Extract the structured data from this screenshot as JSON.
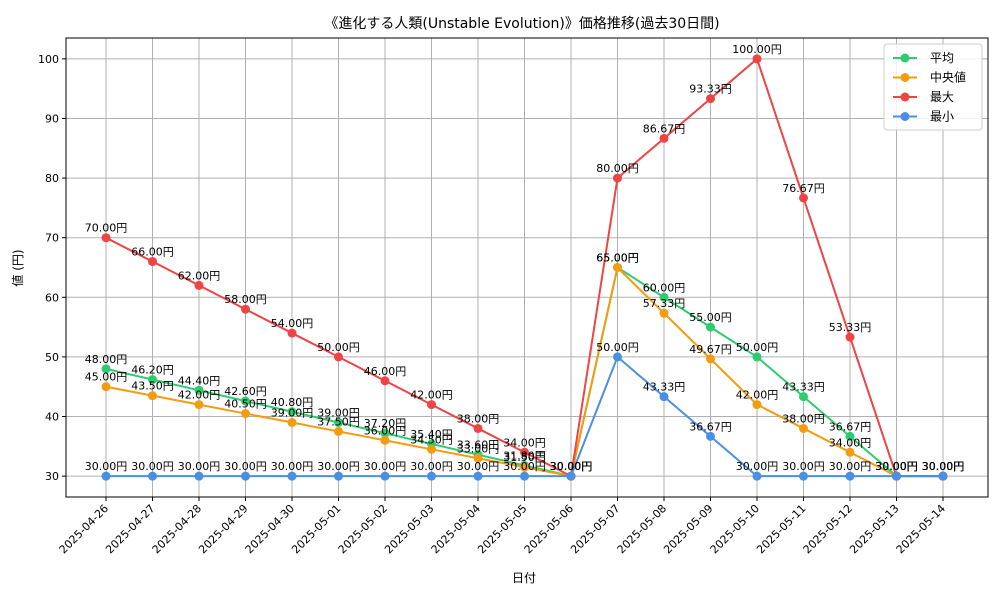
{
  "chart_data": {
    "type": "line",
    "title": "《進化する人類(Unstable Evolution)》価格推移(過去30日間)",
    "xlabel": "日付",
    "ylabel": "値 (円)",
    "ylim": [
      26.5,
      103.5
    ],
    "yticks": [
      30,
      40,
      50,
      60,
      70,
      80,
      90,
      100
    ],
    "grid": true,
    "legend_position": "top-right",
    "value_suffix": "円",
    "categories": [
      "2025-04-26",
      "2025-04-27",
      "2025-04-28",
      "2025-04-29",
      "2025-04-30",
      "2025-05-01",
      "2025-05-02",
      "2025-05-03",
      "2025-05-04",
      "2025-05-05",
      "2025-05-06",
      "2025-05-07",
      "2025-05-08",
      "2025-05-09",
      "2025-05-10",
      "2025-05-11",
      "2025-05-12",
      "2025-05-13",
      "2025-05-14"
    ],
    "series": [
      {
        "name": "平均",
        "color": "#2ecc71",
        "values": [
          48.0,
          46.2,
          44.4,
          42.6,
          40.8,
          39.0,
          37.2,
          35.4,
          33.6,
          31.8,
          30.0,
          65.0,
          60.0,
          55.0,
          50.0,
          43.33,
          36.67,
          30.0,
          30.0
        ]
      },
      {
        "name": "中央値",
        "color": "#f39c12",
        "values": [
          45.0,
          43.5,
          42.0,
          40.5,
          39.0,
          37.5,
          36.0,
          34.5,
          33.0,
          31.5,
          30.0,
          65.0,
          57.33,
          49.67,
          42.0,
          38.0,
          34.0,
          30.0,
          30.0
        ]
      },
      {
        "name": "最大",
        "color": "#ef4444",
        "values": [
          70.0,
          66.0,
          62.0,
          58.0,
          54.0,
          50.0,
          46.0,
          42.0,
          38.0,
          34.0,
          30.0,
          80.0,
          86.67,
          93.33,
          100.0,
          76.67,
          53.33,
          30.0,
          30.0
        ]
      },
      {
        "name": "最小",
        "color": "#4a90e2",
        "values": [
          30.0,
          30.0,
          30.0,
          30.0,
          30.0,
          30.0,
          30.0,
          30.0,
          30.0,
          30.0,
          30.0,
          50.0,
          43.33,
          36.67,
          30.0,
          30.0,
          30.0,
          30.0,
          30.0
        ]
      }
    ]
  }
}
